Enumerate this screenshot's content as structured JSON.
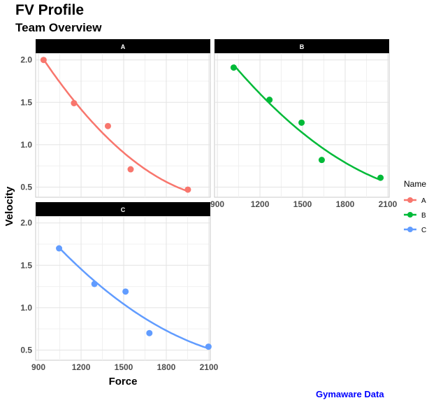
{
  "chart_data": {
    "type": "scatter",
    "title": "FV Profile",
    "subtitle": "Team Overview",
    "caption": "Gymaware Data",
    "xlabel": "Force",
    "ylabel": "Velocity",
    "xlim": [
      880,
      2110
    ],
    "ylim": [
      0.38,
      2.08
    ],
    "xticks": [
      "900",
      "1200",
      "1500",
      "1800",
      "2100"
    ],
    "yticks": [
      "0.5",
      "1.0",
      "1.5",
      "2.0"
    ],
    "grid": true,
    "facets": true,
    "trend": "quadratic smooth",
    "legend": {
      "title": "Name",
      "position": "right"
    },
    "series": [
      {
        "name": "A",
        "color": "#F8766D",
        "x": [
          936,
          1150,
          1389,
          1549,
          1952
        ],
        "y": [
          2.0,
          1.49,
          1.22,
          0.71,
          0.47
        ]
      },
      {
        "name": "B",
        "color": "#00BA38",
        "x": [
          1015,
          1267,
          1493,
          1635,
          2049
        ],
        "y": [
          1.91,
          1.53,
          1.26,
          0.82,
          0.61
        ]
      },
      {
        "name": "C",
        "color": "#619CFF",
        "x": [
          1045,
          1294,
          1513,
          1681,
          2097
        ],
        "y": [
          1.7,
          1.28,
          1.19,
          0.7,
          0.54
        ]
      }
    ]
  }
}
